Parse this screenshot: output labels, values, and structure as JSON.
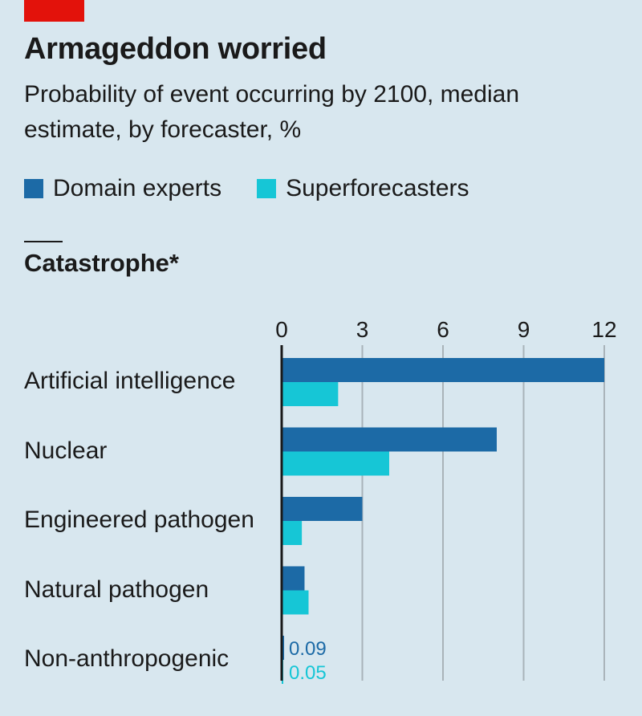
{
  "header": {
    "title": "Armageddon worried",
    "subtitle": "Probability of event occurring by 2100, median estimate, by forecaster, %"
  },
  "legend": [
    {
      "label": "Domain experts",
      "color": "#1c6aa6"
    },
    {
      "label": "Superforecasters",
      "color": "#16c6d6"
    }
  ],
  "section_title": "Catastrophe*",
  "chart_data": {
    "type": "bar",
    "orientation": "horizontal",
    "categories": [
      "Artificial intelligence",
      "Nuclear",
      "Engineered pathogen",
      "Natural pathogen",
      "Non-anthropogenic"
    ],
    "series": [
      {
        "name": "Domain experts",
        "color": "#1c6aa6",
        "values": [
          12,
          8,
          3,
          0.85,
          0.09
        ]
      },
      {
        "name": "Superforecasters",
        "color": "#16c6d6",
        "values": [
          2.1,
          4,
          0.75,
          1,
          0.05
        ]
      }
    ],
    "xlim": [
      0,
      12
    ],
    "xticks": [
      0,
      3,
      6,
      9,
      12
    ],
    "tick_labels": [
      "0",
      "3",
      "6",
      "9",
      "12"
    ],
    "value_labels": [
      {
        "category": "Non-anthropogenic",
        "series": "Domain experts",
        "text": "0.09"
      },
      {
        "category": "Non-anthropogenic",
        "series": "Superforecasters",
        "text": "0.05"
      }
    ],
    "grid": true
  }
}
